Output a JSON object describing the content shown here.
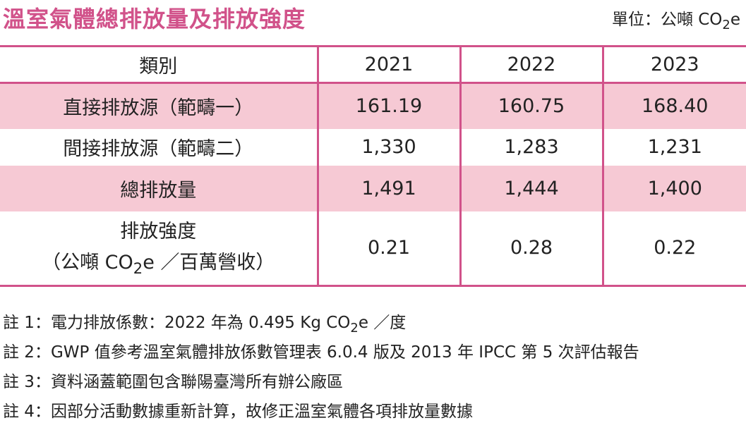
{
  "title": "溫室氣體總排放量及排放強度",
  "unit": {
    "prefix": "單位：公噸 CO",
    "sub": "2",
    "suffix": "e"
  },
  "table": {
    "headers": [
      "類別",
      "2021",
      "2022",
      "2023"
    ],
    "rows": [
      {
        "label": "直接排放源（範疇一）",
        "values": [
          "161.19",
          "160.75",
          "168.40"
        ]
      },
      {
        "label": "間接排放源（範疇二）",
        "values": [
          "1,330",
          "1,283",
          "1,231"
        ]
      },
      {
        "label": "總排放量",
        "values": [
          "1,491",
          "1,444",
          "1,400"
        ]
      },
      {
        "label_line1": "排放強度",
        "label_line2_prefix": "（公噸 CO",
        "label_line2_sub": "2",
        "label_line2_suffix": "e ／百萬營收）",
        "values": [
          "0.21",
          "0.28",
          "0.22"
        ]
      }
    ]
  },
  "notes": [
    {
      "prefix": "註 1：電力排放係數：2022 年為 0.495 Kg CO",
      "sub": "2",
      "suffix": "e ／度"
    },
    {
      "text": "註 2：GWP 值參考溫室氣體排放係數管理表 6.0.4 版及 2013 年 IPCC 第 5 次評估報告"
    },
    {
      "text": "註 3：資料涵蓋範圍包含聯陽臺灣所有辦公廠區"
    },
    {
      "text": "註 4：因部分活動數據重新計算，故修正溫室氣體各項排放量數據"
    }
  ],
  "colors": {
    "accent": "#d1528a",
    "row_highlight": "#f6c9d4"
  }
}
